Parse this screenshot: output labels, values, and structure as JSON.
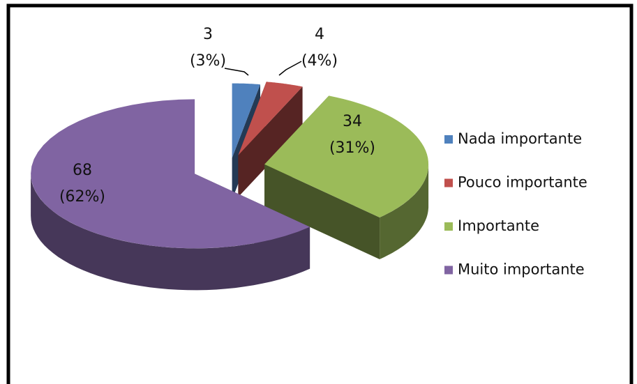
{
  "chart_data": {
    "type": "pie3d",
    "categories": [
      "Nada importante",
      "Pouco importante",
      "Importante",
      "Muito importante"
    ],
    "values": [
      3,
      4,
      34,
      68
    ],
    "percent_labels": [
      "(3%)",
      "(4%)",
      "(31%)",
      "(62%)"
    ],
    "colors": [
      "#4f81bd",
      "#c0504d",
      "#9bbb59",
      "#8064a2"
    ],
    "legend": "right"
  }
}
